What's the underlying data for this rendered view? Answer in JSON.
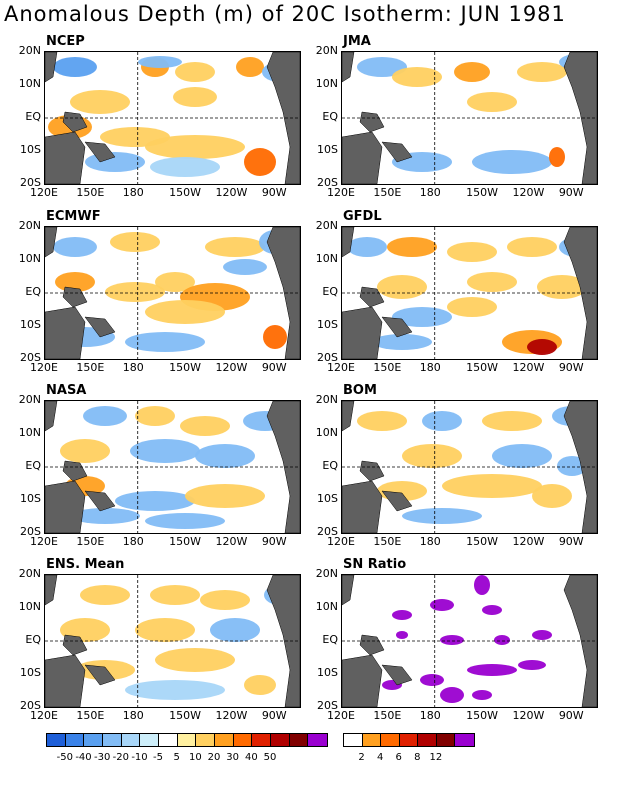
{
  "title": "Anomalous Depth (m) of 20C Isotherm: JUN 1981",
  "y_ticks": [
    "20N",
    "10N",
    "EQ",
    "10S",
    "20S"
  ],
  "x_ticks": [
    "120E",
    "150E",
    "180",
    "150W",
    "120W",
    "90W"
  ],
  "panels": [
    {
      "id": "ncep",
      "label": "NCEP"
    },
    {
      "id": "jma",
      "label": "JMA"
    },
    {
      "id": "ecmwf",
      "label": "ECMWF"
    },
    {
      "id": "gfdl",
      "label": "GFDL"
    },
    {
      "id": "nasa",
      "label": "NASA"
    },
    {
      "id": "bom",
      "label": "BOM"
    },
    {
      "id": "ens",
      "label": "ENS. Mean"
    },
    {
      "id": "sn",
      "label": "SN Ratio"
    }
  ],
  "anomaly_scale": {
    "colors": [
      "#1e5fd8",
      "#3a82e8",
      "#5aa0f0",
      "#82bcf5",
      "#a8d6f8",
      "#cdeefa",
      "#ffffff",
      "#fff0a0",
      "#ffd060",
      "#ffa020",
      "#ff6a00",
      "#e02000",
      "#b00000",
      "#800000",
      "#9a00d0"
    ],
    "labels": [
      "-50",
      "-40",
      "-30",
      "-20",
      "-10",
      "-5",
      "5",
      "10",
      "20",
      "30",
      "40",
      "50"
    ]
  },
  "sn_scale": {
    "colors": [
      "#ffffff",
      "#ffa020",
      "#ff6a00",
      "#e02000",
      "#b00000",
      "#800000",
      "#9a00d0"
    ],
    "labels": [
      "2",
      "4",
      "6",
      "8",
      "12"
    ]
  }
}
